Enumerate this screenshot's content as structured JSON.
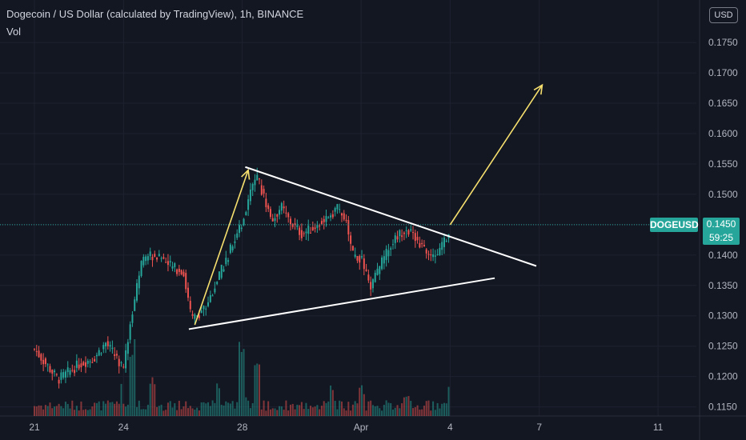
{
  "header": {
    "title": "Dogecoin / US Dollar (calculated by TradingView), 1h, BINANCE",
    "volume_label": "Vol",
    "currency": "USD"
  },
  "badges": {
    "symbol": "DOGEUSD",
    "last_price": "0.1450",
    "countdown": "59:25"
  },
  "colors": {
    "background": "#131722",
    "up": "#26a69a",
    "down": "#ef5350",
    "trendline": "#ffffff",
    "arrow": "#f7e06e",
    "grid": "#1e2230",
    "axis_text": "#b2b5be"
  },
  "chart_data": {
    "type": "candlestick",
    "title": "Dogecoin / US Dollar (calculated by TradingView), 1h, BINANCE",
    "y_ticks": [
      "0.1750",
      "0.1700",
      "0.1650",
      "0.1600",
      "0.1550",
      "0.1500",
      "0.1450",
      "0.1400",
      "0.1350",
      "0.1300",
      "0.1250",
      "0.1200",
      "0.1150"
    ],
    "ylim": [
      0.1135,
      0.182
    ],
    "x_ticks": [
      {
        "label": "21",
        "day": 0
      },
      {
        "label": "24",
        "day": 3
      },
      {
        "label": "28",
        "day": 7
      },
      {
        "label": "Apr",
        "day": 11
      },
      {
        "label": "4",
        "day": 14
      },
      {
        "label": "7",
        "day": 17
      },
      {
        "label": "11",
        "day": 21
      }
    ],
    "grid": true,
    "price_path_key_points": [
      [
        0,
        0.1245
      ],
      [
        0.8,
        0.1195
      ],
      [
        1.5,
        0.122
      ],
      [
        2.0,
        0.123
      ],
      [
        2.4,
        0.1255
      ],
      [
        3.0,
        0.1215
      ],
      [
        3.3,
        0.131
      ],
      [
        3.6,
        0.1385
      ],
      [
        3.9,
        0.14
      ],
      [
        4.3,
        0.1395
      ],
      [
        4.6,
        0.138
      ],
      [
        5.0,
        0.1375
      ],
      [
        5.3,
        0.1292
      ],
      [
        5.8,
        0.1318
      ],
      [
        6.3,
        0.1375
      ],
      [
        6.7,
        0.142
      ],
      [
        7.0,
        0.1455
      ],
      [
        7.3,
        0.151
      ],
      [
        7.5,
        0.1528
      ],
      [
        7.8,
        0.1485
      ],
      [
        8.0,
        0.1455
      ],
      [
        8.3,
        0.148
      ],
      [
        8.6,
        0.1455
      ],
      [
        9.0,
        0.1435
      ],
      [
        9.4,
        0.1445
      ],
      [
        9.8,
        0.146
      ],
      [
        10.2,
        0.1478
      ],
      [
        10.5,
        0.1455
      ],
      [
        10.7,
        0.14
      ],
      [
        11.0,
        0.1395
      ],
      [
        11.3,
        0.1345
      ],
      [
        11.7,
        0.1388
      ],
      [
        12.1,
        0.1425
      ],
      [
        12.5,
        0.1445
      ],
      [
        12.8,
        0.143
      ],
      [
        13.1,
        0.141
      ],
      [
        13.4,
        0.1395
      ],
      [
        13.7,
        0.141
      ],
      [
        13.9,
        0.1432
      ],
      [
        14.0,
        0.145
      ]
    ],
    "volume_scale_max": 1,
    "volume_spikes": [
      [
        3.3,
        0.95
      ],
      [
        4.0,
        0.45
      ],
      [
        6.2,
        0.4
      ],
      [
        7.0,
        0.9
      ],
      [
        7.5,
        0.6
      ],
      [
        10.0,
        0.35
      ],
      [
        11.0,
        0.35
      ],
      [
        12.5,
        0.3
      ],
      [
        14.0,
        0.4
      ]
    ],
    "annotations": [
      {
        "type": "trendline",
        "from": {
          "day": 7.1,
          "price": 0.1545
        },
        "to": {
          "day": 16.9,
          "price": 0.1382
        },
        "color": "#ffffff"
      },
      {
        "type": "trendline",
        "from": {
          "day": 5.2,
          "price": 0.1278
        },
        "to": {
          "day": 15.5,
          "price": 0.1362
        },
        "color": "#ffffff"
      },
      {
        "type": "arrow",
        "from": {
          "day": 5.4,
          "price": 0.1285
        },
        "to": {
          "day": 7.2,
          "price": 0.154
        },
        "color": "#f7e06e"
      },
      {
        "type": "arrow",
        "from": {
          "day": 14.0,
          "price": 0.145
        },
        "to": {
          "day": 17.1,
          "price": 0.168
        },
        "color": "#f7e06e"
      }
    ],
    "last_price": 0.145
  }
}
